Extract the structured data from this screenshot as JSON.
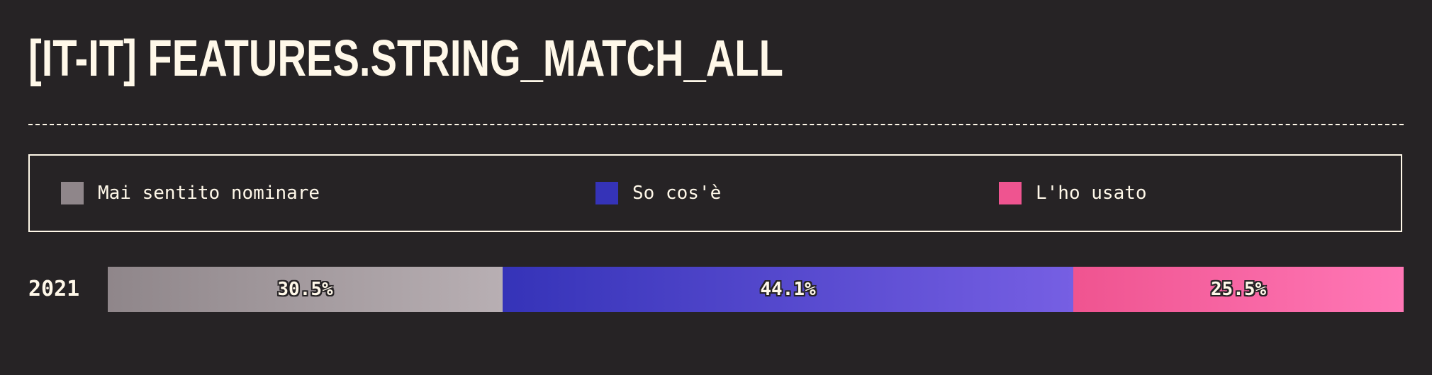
{
  "title": "[IT-IT] FEATURES.STRING_MATCH_ALL",
  "legend": {
    "items": [
      {
        "label": "Mai sentito nominare",
        "color": "#8f868a"
      },
      {
        "label": "So cos'è",
        "color": "#3533b8"
      },
      {
        "label": "L'ho usato",
        "color": "#ef5490"
      }
    ]
  },
  "chart_data": {
    "type": "bar",
    "orientation": "horizontal",
    "stacked": true,
    "normalized": true,
    "categories": [
      "2021"
    ],
    "series": [
      {
        "name": "Mai sentito nominare",
        "values": [
          30.5
        ],
        "color_start": "#8f868a",
        "color_end": "#b8afb3",
        "label": "30.5%"
      },
      {
        "name": "So cos'è",
        "values": [
          44.1
        ],
        "color_start": "#3533b8",
        "color_end": "#765fe3",
        "label": "44.1%"
      },
      {
        "name": "L'ho usato",
        "values": [
          25.5
        ],
        "color_start": "#ef5490",
        "color_end": "#ff77b6",
        "label": "25.5%"
      }
    ],
    "xlim": [
      0,
      100
    ],
    "grid": false,
    "legend_position": "top"
  }
}
